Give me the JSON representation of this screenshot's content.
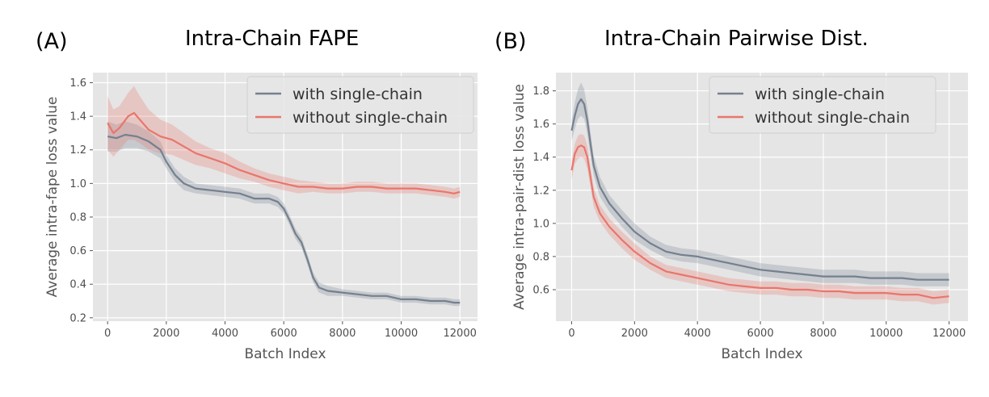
{
  "colors": {
    "with": "#75808f",
    "without": "#e8766c",
    "bg": "#e5e5e5",
    "grid": "#ffffff"
  },
  "chart_data": [
    {
      "type": "line",
      "panel_label": "(A)",
      "title": "Intra-Chain FAPE",
      "xlabel": "Batch Index",
      "ylabel": "Average intra-fape loss value",
      "xlim": [
        -500,
        12600
      ],
      "ylim": [
        0.18,
        1.66
      ],
      "xticks": [
        0,
        2000,
        4000,
        6000,
        8000,
        10000,
        12000
      ],
      "yticks": [
        0.2,
        0.4,
        0.6,
        0.8,
        1.0,
        1.2,
        1.4,
        1.6
      ],
      "grid": true,
      "legend_position": "top-right",
      "series": [
        {
          "name": "with single-chain",
          "color_key": "with",
          "x": [
            0,
            300,
            600,
            1000,
            1400,
            1800,
            2000,
            2300,
            2600,
            3000,
            3500,
            4000,
            4500,
            5000,
            5500,
            5800,
            6000,
            6200,
            6400,
            6600,
            6800,
            7000,
            7200,
            7500,
            8000,
            8500,
            9000,
            9500,
            10000,
            10500,
            11000,
            11500,
            11800,
            12000
          ],
          "y": [
            1.28,
            1.27,
            1.29,
            1.28,
            1.25,
            1.2,
            1.13,
            1.05,
            1.0,
            0.97,
            0.96,
            0.95,
            0.94,
            0.91,
            0.91,
            0.89,
            0.85,
            0.78,
            0.7,
            0.65,
            0.55,
            0.44,
            0.38,
            0.36,
            0.35,
            0.34,
            0.33,
            0.33,
            0.31,
            0.31,
            0.3,
            0.3,
            0.29,
            0.29
          ],
          "band": [
            0.09,
            0.08,
            0.08,
            0.07,
            0.06,
            0.05,
            0.04,
            0.04,
            0.04,
            0.03,
            0.03,
            0.03,
            0.03,
            0.03,
            0.03,
            0.03,
            0.03,
            0.03,
            0.03,
            0.03,
            0.03,
            0.03,
            0.03,
            0.03,
            0.02,
            0.02,
            0.02,
            0.02,
            0.02,
            0.02,
            0.02,
            0.02,
            0.02,
            0.02
          ]
        },
        {
          "name": "without single-chain",
          "color_key": "without",
          "x": [
            0,
            200,
            400,
            700,
            900,
            1100,
            1400,
            1800,
            2200,
            2600,
            3000,
            3500,
            4000,
            4500,
            5000,
            5500,
            6000,
            6500,
            7000,
            7500,
            8000,
            8500,
            9000,
            9500,
            10000,
            10500,
            11000,
            11500,
            11800,
            12000
          ],
          "y": [
            1.36,
            1.3,
            1.33,
            1.4,
            1.42,
            1.38,
            1.32,
            1.28,
            1.26,
            1.22,
            1.18,
            1.15,
            1.12,
            1.08,
            1.05,
            1.02,
            1.0,
            0.98,
            0.98,
            0.97,
            0.97,
            0.98,
            0.98,
            0.97,
            0.97,
            0.97,
            0.96,
            0.95,
            0.94,
            0.95
          ],
          "band": [
            0.16,
            0.14,
            0.13,
            0.14,
            0.16,
            0.14,
            0.12,
            0.1,
            0.09,
            0.08,
            0.07,
            0.06,
            0.06,
            0.05,
            0.04,
            0.04,
            0.04,
            0.04,
            0.03,
            0.03,
            0.03,
            0.03,
            0.03,
            0.03,
            0.03,
            0.03,
            0.03,
            0.03,
            0.03,
            0.03
          ]
        }
      ]
    },
    {
      "type": "line",
      "panel_label": "(B)",
      "title": "Intra-Chain Pairwise Dist.",
      "xlabel": "Batch Index",
      "ylabel": "Average intra-pair-dist loss value",
      "xlim": [
        -500,
        12600
      ],
      "ylim": [
        0.41,
        1.91
      ],
      "xticks": [
        0,
        2000,
        4000,
        6000,
        8000,
        10000,
        12000
      ],
      "yticks": [
        0.6,
        0.8,
        1.0,
        1.2,
        1.4,
        1.6,
        1.8
      ],
      "grid": true,
      "legend_position": "top-right",
      "series": [
        {
          "name": "with single-chain",
          "color_key": "with",
          "x": [
            0,
            100,
            200,
            300,
            400,
            500,
            600,
            700,
            900,
            1200,
            1600,
            2000,
            2500,
            3000,
            3500,
            4000,
            4500,
            5000,
            5500,
            6000,
            6500,
            7000,
            7500,
            8000,
            8500,
            9000,
            9500,
            10000,
            10500,
            11000,
            11500,
            12000
          ],
          "y": [
            1.56,
            1.65,
            1.72,
            1.75,
            1.72,
            1.62,
            1.48,
            1.35,
            1.22,
            1.12,
            1.03,
            0.95,
            0.88,
            0.83,
            0.81,
            0.8,
            0.78,
            0.76,
            0.74,
            0.72,
            0.71,
            0.7,
            0.69,
            0.68,
            0.68,
            0.68,
            0.67,
            0.67,
            0.67,
            0.66,
            0.66,
            0.66
          ],
          "band": [
            0.06,
            0.08,
            0.09,
            0.1,
            0.09,
            0.08,
            0.07,
            0.06,
            0.06,
            0.05,
            0.05,
            0.05,
            0.04,
            0.04,
            0.04,
            0.04,
            0.04,
            0.04,
            0.04,
            0.04,
            0.04,
            0.04,
            0.04,
            0.04,
            0.04,
            0.04,
            0.04,
            0.04,
            0.04,
            0.04,
            0.04,
            0.04
          ]
        },
        {
          "name": "without single-chain",
          "color_key": "without",
          "x": [
            0,
            100,
            200,
            300,
            400,
            500,
            600,
            700,
            900,
            1200,
            1600,
            2000,
            2500,
            3000,
            3500,
            4000,
            4500,
            5000,
            5500,
            6000,
            6500,
            7000,
            7500,
            8000,
            8500,
            9000,
            9500,
            10000,
            10500,
            11000,
            11500,
            12000
          ],
          "y": [
            1.32,
            1.42,
            1.46,
            1.47,
            1.46,
            1.4,
            1.28,
            1.16,
            1.06,
            0.98,
            0.9,
            0.83,
            0.76,
            0.71,
            0.69,
            0.67,
            0.65,
            0.63,
            0.62,
            0.61,
            0.61,
            0.6,
            0.6,
            0.59,
            0.59,
            0.58,
            0.58,
            0.58,
            0.57,
            0.57,
            0.55,
            0.56
          ],
          "band": [
            0.06,
            0.06,
            0.07,
            0.07,
            0.07,
            0.07,
            0.06,
            0.06,
            0.05,
            0.05,
            0.05,
            0.05,
            0.04,
            0.04,
            0.04,
            0.04,
            0.04,
            0.04,
            0.04,
            0.04,
            0.04,
            0.04,
            0.04,
            0.04,
            0.04,
            0.04,
            0.04,
            0.04,
            0.04,
            0.04,
            0.04,
            0.04
          ]
        }
      ]
    }
  ]
}
